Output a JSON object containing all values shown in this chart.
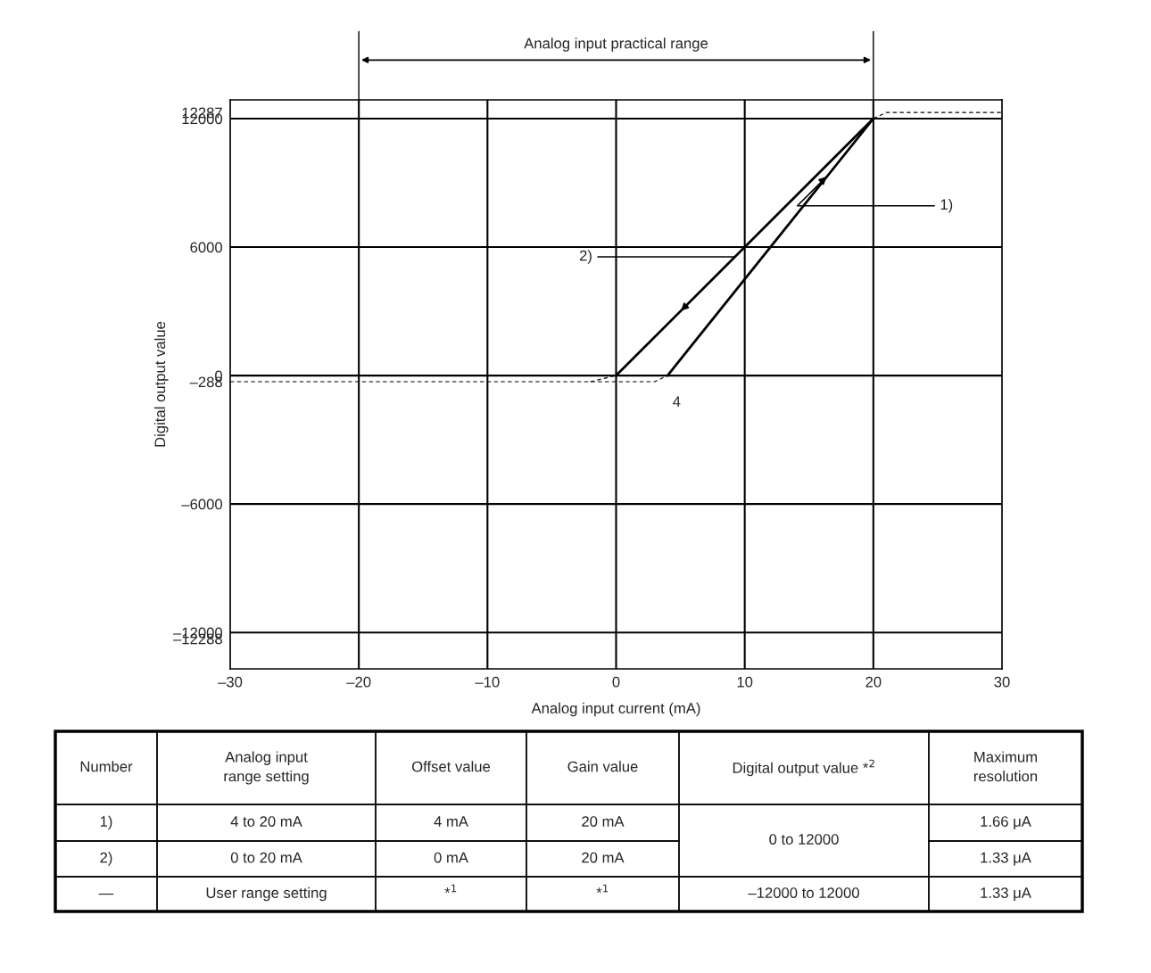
{
  "chart_data": [
    {
      "type": "line",
      "xlabel": "Analog input current (mA)",
      "ylabel": "Digital output value",
      "xlim": [
        -30,
        30
      ],
      "ylim": [
        -13700,
        12875
      ],
      "xticks": [
        {
          "value": -30,
          "label": "–30"
        },
        {
          "value": -20,
          "label": "–20"
        },
        {
          "value": -10,
          "label": "–10"
        },
        0,
        10,
        20,
        30
      ],
      "yticks": [
        {
          "value": -12288,
          "label": "–12288"
        },
        {
          "value": -12000,
          "label": "–12000"
        },
        {
          "value": -6000,
          "label": "–6000"
        },
        {
          "value": -288,
          "label": "–288"
        },
        0,
        6000,
        12000,
        12287
      ],
      "ref_lines": [
        {
          "axis": "y",
          "value": 12000
        },
        {
          "axis": "y",
          "value": 6000
        },
        {
          "axis": "y",
          "value": 0
        },
        {
          "axis": "y",
          "value": -6000
        },
        {
          "axis": "y",
          "value": -12000
        },
        {
          "axis": "x",
          "value": -20
        },
        {
          "axis": "x",
          "value": -10
        },
        {
          "axis": "x",
          "value": 0
        },
        {
          "axis": "x",
          "value": 10
        },
        {
          "axis": "x",
          "value": 20
        }
      ],
      "series": [
        {
          "color": "#000000",
          "line_style": "solid",
          "x": [
            4,
            20
          ],
          "values": [
            0,
            12000
          ]
        },
        {
          "color": "#000000",
          "line_style": "solid",
          "x": [
            0,
            20
          ],
          "values": [
            0,
            12000
          ]
        },
        {
          "color": "#000000",
          "line_style": "dashed",
          "x": [
            -30,
            3,
            4
          ],
          "values": [
            -288,
            -288,
            0
          ]
        },
        {
          "color": "#000000",
          "line_style": "dashed",
          "x": [
            -2,
            0
          ],
          "values": [
            -288,
            0
          ]
        },
        {
          "color": "#000000",
          "line_style": "dashed",
          "x": [
            20,
            21,
            30
          ],
          "values": [
            12000,
            12287,
            12287
          ]
        }
      ],
      "annotations": [
        "Analog input practical range",
        {
          "text": "1)",
          "x": 16.5,
          "y": 9375
        },
        {
          "text": "2)",
          "x": 4.9,
          "y": 2940
        },
        {
          "text": "4",
          "x": 4,
          "y": 0
        }
      ]
    },
    {
      "type": "other",
      "categories": [
        "Number",
        "Analog input\nrange setting",
        "Offset value",
        "Gain value",
        "Digital output value *$^{2}$",
        "Maximum\nresolution"
      ],
      "cell_labels": [
        [
          "1)",
          "4 to 20 mA",
          "4 mA",
          "20 mA",
          "0 to 12000",
          "1.66 μA"
        ],
        [
          "2)",
          "0 to 20 mA",
          "0 mA",
          "20 mA",
          null,
          "1.33 μA"
        ],
        [
          "—",
          "User range setting",
          "*$^{1}$",
          "*$^{1}$",
          "–12000 to 12000",
          "1.33 μA"
        ]
      ]
    }
  ]
}
